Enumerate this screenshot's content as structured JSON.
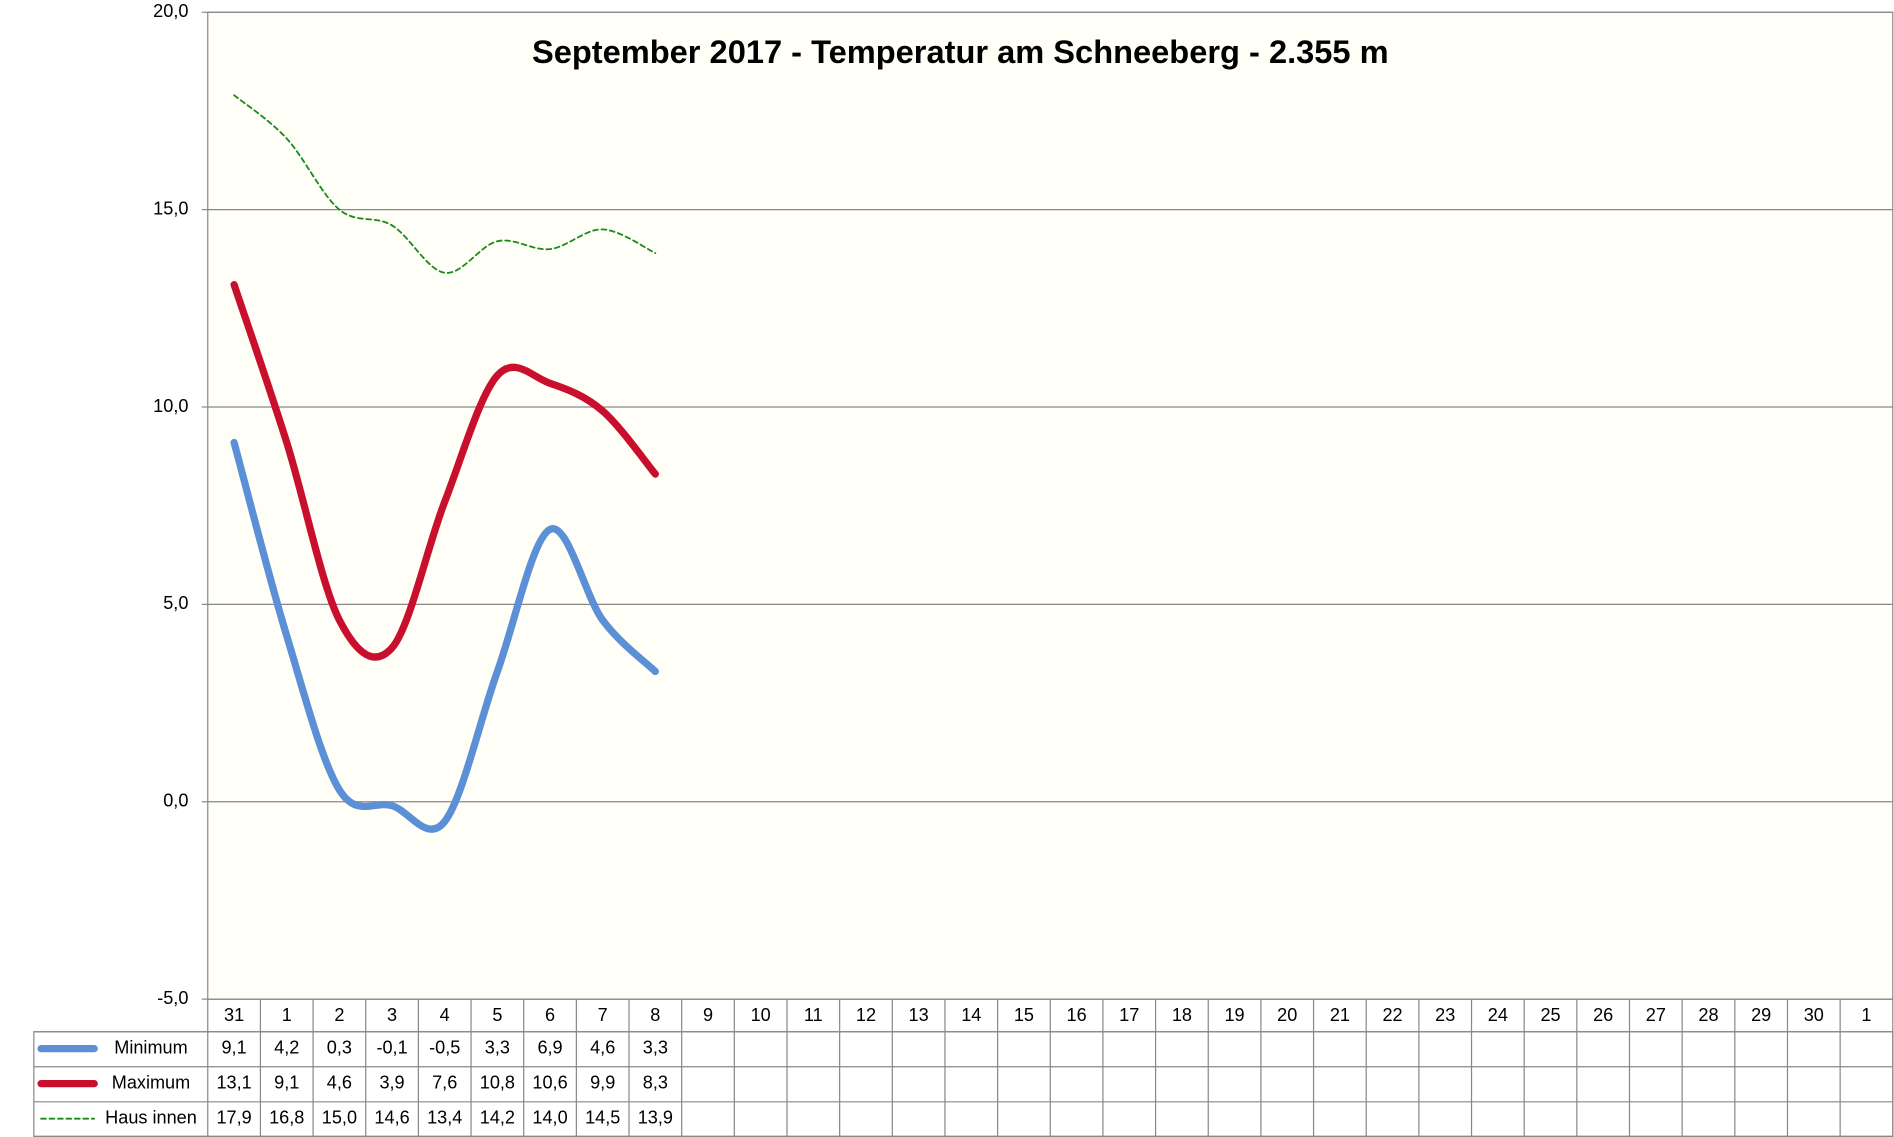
{
  "chart_data": {
    "type": "line",
    "title": "September 2017 - Temperatur am Schneeberg - 2.355 m",
    "categories": [
      "31",
      "1",
      "2",
      "3",
      "4",
      "5",
      "6",
      "7",
      "8",
      "9",
      "10",
      "11",
      "12",
      "13",
      "14",
      "15",
      "16",
      "17",
      "18",
      "19",
      "20",
      "21",
      "22",
      "23",
      "24",
      "25",
      "26",
      "27",
      "28",
      "29",
      "30",
      "1"
    ],
    "series": [
      {
        "name": "Minimum",
        "color": "#5b8fd6",
        "dashed": false,
        "values": [
          9.1,
          4.2,
          0.3,
          -0.1,
          -0.5,
          3.3,
          6.9,
          4.6,
          3.3,
          null,
          null,
          null,
          null,
          null,
          null,
          null,
          null,
          null,
          null,
          null,
          null,
          null,
          null,
          null,
          null,
          null,
          null,
          null,
          null,
          null,
          null,
          null
        ],
        "value_labels": [
          "9,1",
          "4,2",
          "0,3",
          "-0,1",
          "-0,5",
          "3,3",
          "6,9",
          "4,6",
          "3,3",
          null,
          null,
          null,
          null,
          null,
          null,
          null,
          null,
          null,
          null,
          null,
          null,
          null,
          null,
          null,
          null,
          null,
          null,
          null,
          null,
          null,
          null,
          null
        ]
      },
      {
        "name": "Maximum",
        "color": "#c8102e",
        "dashed": false,
        "values": [
          13.1,
          9.1,
          4.6,
          3.9,
          7.6,
          10.8,
          10.6,
          9.9,
          8.3,
          null,
          null,
          null,
          null,
          null,
          null,
          null,
          null,
          null,
          null,
          null,
          null,
          null,
          null,
          null,
          null,
          null,
          null,
          null,
          null,
          null,
          null,
          null
        ],
        "value_labels": [
          "13,1",
          "9,1",
          "4,6",
          "3,9",
          "7,6",
          "10,8",
          "10,6",
          "9,9",
          "8,3",
          null,
          null,
          null,
          null,
          null,
          null,
          null,
          null,
          null,
          null,
          null,
          null,
          null,
          null,
          null,
          null,
          null,
          null,
          null,
          null,
          null,
          null,
          null
        ]
      },
      {
        "name": "Haus innen",
        "color": "#1a8a1a",
        "dashed": true,
        "values": [
          17.9,
          16.8,
          15.0,
          14.6,
          13.4,
          14.2,
          14.0,
          14.5,
          13.9,
          null,
          null,
          null,
          null,
          null,
          null,
          null,
          null,
          null,
          null,
          null,
          null,
          null,
          null,
          null,
          null,
          null,
          null,
          null,
          null,
          null,
          null,
          null
        ],
        "value_labels": [
          "17,9",
          "16,8",
          "15,0",
          "14,6",
          "13,4",
          "14,2",
          "14,0",
          "14,5",
          "13,9",
          null,
          null,
          null,
          null,
          null,
          null,
          null,
          null,
          null,
          null,
          null,
          null,
          null,
          null,
          null,
          null,
          null,
          null,
          null,
          null,
          null,
          null,
          null
        ]
      }
    ],
    "ylim": [
      -5,
      20
    ],
    "yticks": [
      {
        "value": -5,
        "label": "-5,0"
      },
      {
        "value": 0,
        "label": "0,0"
      },
      {
        "value": 5,
        "label": "5,0"
      },
      {
        "value": 10,
        "label": "10,0"
      },
      {
        "value": 15,
        "label": "15,0"
      },
      {
        "value": 20,
        "label": "20,0"
      }
    ],
    "grid": true
  }
}
